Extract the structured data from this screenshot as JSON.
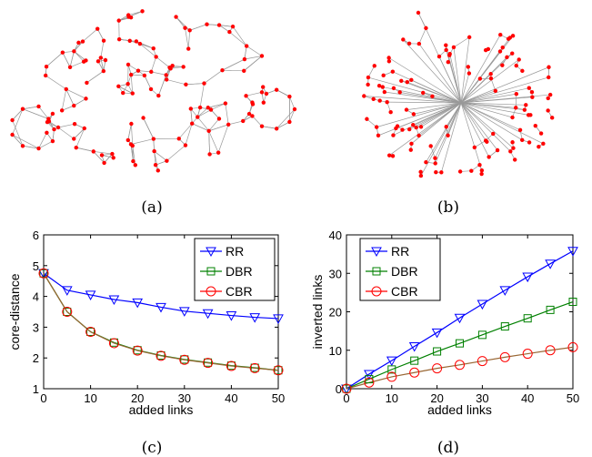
{
  "captions": {
    "a": "(a)",
    "b": "(b)",
    "c": "(c)",
    "d": "(d)"
  },
  "colors": {
    "RR": "#0000ff",
    "DBR": "#008000",
    "CBR": "#ff0000",
    "CBR_line": "#996633",
    "node": "#ff0000",
    "edge": "#999999"
  },
  "chart_data": [
    {
      "type": "line",
      "panel": "c",
      "xlabel": "added links",
      "ylabel": "core-distance",
      "xlim": [
        0,
        50
      ],
      "ylim": [
        1,
        6
      ],
      "xticks": [
        0,
        10,
        20,
        30,
        40,
        50
      ],
      "yticks": [
        1,
        2,
        3,
        4,
        5,
        6
      ],
      "grid": false,
      "legend": "top-right",
      "x": [
        0,
        5,
        10,
        15,
        20,
        25,
        30,
        35,
        40,
        45,
        50
      ],
      "series": [
        {
          "name": "RR",
          "marker": "triangle-down",
          "values": [
            4.75,
            4.2,
            4.05,
            3.9,
            3.8,
            3.65,
            3.52,
            3.45,
            3.38,
            3.32,
            3.28
          ]
        },
        {
          "name": "DBR",
          "marker": "square",
          "values": [
            4.75,
            3.5,
            2.85,
            2.5,
            2.25,
            2.08,
            1.95,
            1.85,
            1.75,
            1.68,
            1.6
          ]
        },
        {
          "name": "CBR",
          "marker": "circle",
          "values": [
            4.75,
            3.5,
            2.85,
            2.48,
            2.24,
            2.07,
            1.94,
            1.84,
            1.74,
            1.67,
            1.6
          ]
        }
      ]
    },
    {
      "type": "line",
      "panel": "d",
      "xlabel": "added links",
      "ylabel": "inverted links",
      "xlim": [
        0,
        50
      ],
      "ylim": [
        0,
        40
      ],
      "xticks": [
        0,
        10,
        20,
        30,
        40,
        50
      ],
      "yticks": [
        0,
        10,
        20,
        30,
        40
      ],
      "grid": false,
      "legend": "top-left",
      "x": [
        0,
        5,
        10,
        15,
        20,
        25,
        30,
        35,
        40,
        45,
        50
      ],
      "series": [
        {
          "name": "RR",
          "marker": "triangle-down",
          "values": [
            0,
            3.8,
            7.3,
            11,
            14.6,
            18.4,
            22,
            25.6,
            29.1,
            32.5,
            35.8
          ]
        },
        {
          "name": "DBR",
          "marker": "square",
          "values": [
            0,
            2.5,
            5,
            7.3,
            9.7,
            11.8,
            14,
            16.2,
            18.3,
            20.5,
            22.6
          ]
        },
        {
          "name": "CBR",
          "marker": "circle",
          "values": [
            0,
            1.6,
            3.1,
            4.2,
            5.3,
            6.2,
            7.2,
            8.2,
            9.1,
            10,
            10.8
          ]
        }
      ]
    }
  ]
}
